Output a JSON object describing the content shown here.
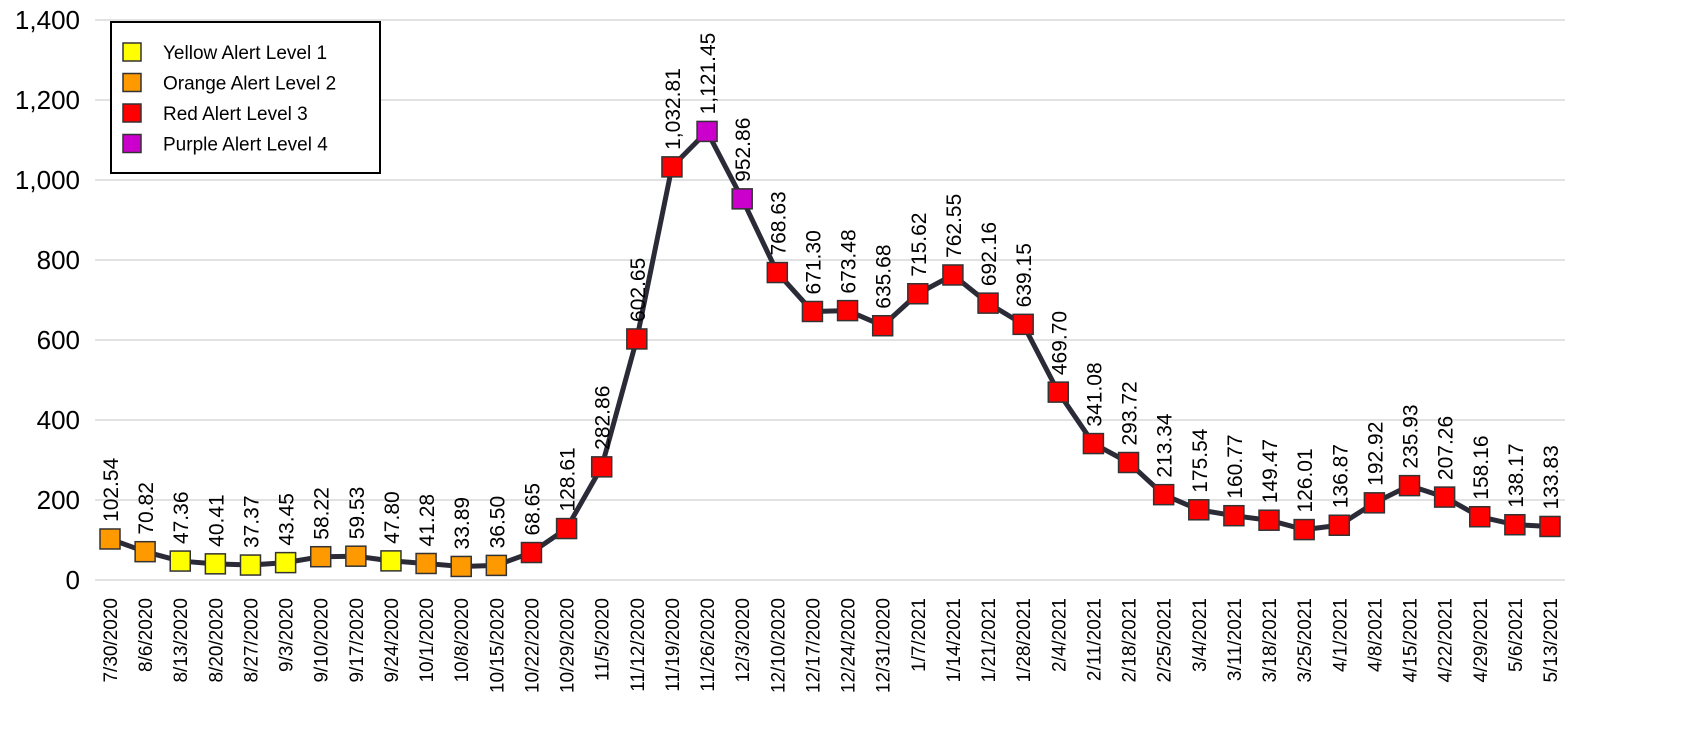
{
  "chart_data": {
    "type": "line",
    "categories": [
      "7/30/2020",
      "8/6/2020",
      "8/13/2020",
      "8/20/2020",
      "8/27/2020",
      "9/3/2020",
      "9/10/2020",
      "9/17/2020",
      "9/24/2020",
      "10/1/2020",
      "10/8/2020",
      "10/15/2020",
      "10/22/2020",
      "10/29/2020",
      "11/5/2020",
      "11/12/2020",
      "11/19/2020",
      "11/26/2020",
      "12/3/2020",
      "12/10/2020",
      "12/17/2020",
      "12/24/2020",
      "12/31/2020",
      "1/7/2021",
      "1/14/2021",
      "1/21/2021",
      "1/28/2021",
      "2/4/2021",
      "2/11/2021",
      "2/18/2021",
      "2/25/2021",
      "3/4/2021",
      "3/11/2021",
      "3/18/2021",
      "3/25/2021",
      "4/1/2021",
      "4/8/2021",
      "4/15/2021",
      "4/22/2021",
      "4/29/2021",
      "5/6/2021",
      "5/13/2021"
    ],
    "values": [
      102.54,
      70.82,
      47.36,
      40.41,
      37.37,
      43.45,
      58.22,
      59.53,
      47.8,
      41.28,
      33.89,
      36.5,
      68.65,
      128.61,
      282.86,
      602.65,
      1032.81,
      1121.45,
      952.86,
      768.63,
      671.3,
      673.48,
      635.68,
      715.62,
      762.55,
      692.16,
      639.15,
      469.7,
      341.08,
      293.72,
      213.34,
      175.54,
      160.77,
      149.47,
      126.01,
      136.87,
      192.92,
      235.93,
      207.26,
      158.16,
      138.17,
      133.83
    ],
    "value_labels": [
      "102.54",
      "70.82",
      "47.36",
      "40.41",
      "37.37",
      "43.45",
      "58.22",
      "59.53",
      "47.80",
      "41.28",
      "33.89",
      "36.50",
      "68.65",
      "128.61",
      "282.86",
      "602.65",
      "1,032.81",
      "1,121.45",
      "952.86",
      "768.63",
      "671.30",
      "673.48",
      "635.68",
      "715.62",
      "762.55",
      "692.16",
      "639.15",
      "469.70",
      "341.08",
      "293.72",
      "213.34",
      "175.54",
      "160.77",
      "149.47",
      "126.01",
      "136.87",
      "192.92",
      "235.93",
      "207.26",
      "158.16",
      "138.17",
      "133.83"
    ],
    "line_color": "#2b2b38",
    "marker_colors": [
      "#ff9900",
      "#ff9900",
      "#ffff00",
      "#ffff00",
      "#ffff00",
      "#ffff00",
      "#ff9900",
      "#ff9900",
      "#ffff00",
      "#ff9900",
      "#ff9900",
      "#ff9900",
      "#ff0000",
      "#ff0000",
      "#ff0000",
      "#ff0000",
      "#ff0000",
      "#cc00cc",
      "#cc00cc",
      "#ff0000",
      "#ff0000",
      "#ff0000",
      "#ff0000",
      "#ff0000",
      "#ff0000",
      "#ff0000",
      "#ff0000",
      "#ff0000",
      "#ff0000",
      "#ff0000",
      "#ff0000",
      "#ff0000",
      "#ff0000",
      "#ff0000",
      "#ff0000",
      "#ff0000",
      "#ff0000",
      "#ff0000",
      "#ff0000",
      "#ff0000",
      "#ff0000",
      "#ff0000"
    ],
    "legend": [
      {
        "name": "Yellow Alert Level 1",
        "color": "#ffff00"
      },
      {
        "name": "Orange Alert Level 2",
        "color": "#ff9900"
      },
      {
        "name": "Red Alert Level 3",
        "color": "#ff0000"
      },
      {
        "name": "Purple Alert Level 4",
        "color": "#cc00cc"
      }
    ],
    "ylim": [
      0,
      1400
    ],
    "yticks": [
      0,
      200,
      400,
      600,
      800,
      {
        "value": 1000,
        "label": "1,000"
      },
      {
        "value": 1200,
        "label": "1,200"
      },
      {
        "value": 1400,
        "label": "1,400"
      }
    ],
    "grid": true
  }
}
